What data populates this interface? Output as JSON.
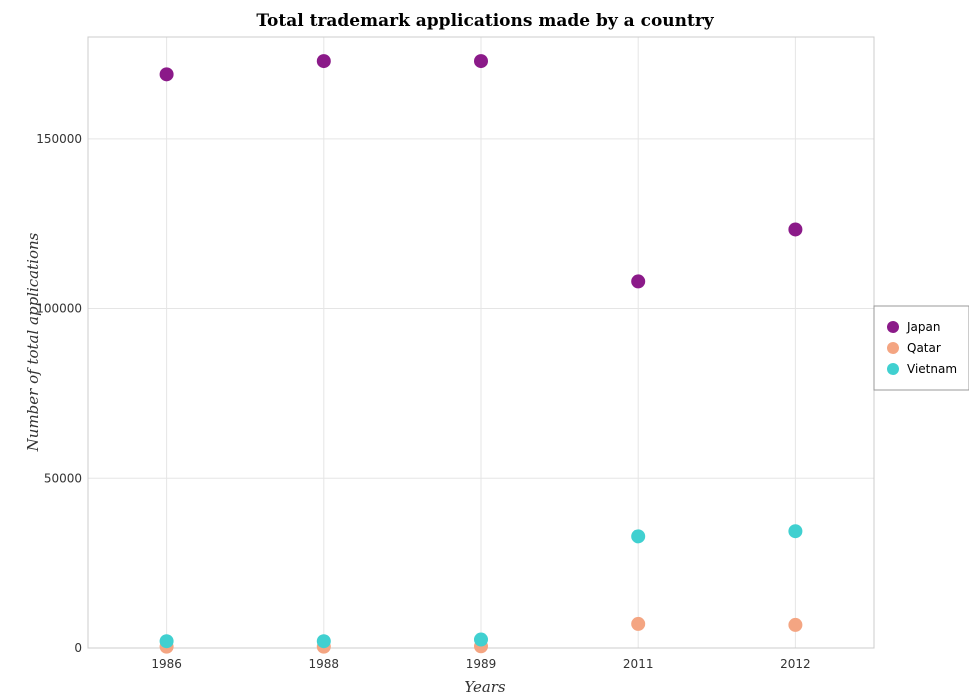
{
  "chart_data": {
    "type": "scatter",
    "title": "Total trademark applications made by a country",
    "xlabel": "Years",
    "ylabel": "Number of total applications",
    "categories": [
      "1986",
      "1988",
      "1989",
      "2011",
      "2012"
    ],
    "ylim": [
      0,
      180000
    ],
    "yticks": [
      0,
      50000,
      100000,
      150000
    ],
    "ytick_labels": [
      "0",
      "50000",
      "100000",
      "150000"
    ],
    "grid": true,
    "legend_position": "right",
    "series": [
      {
        "name": "Japan",
        "color": "#8b1a89",
        "values": [
          169000,
          172900,
          172900,
          108000,
          123300
        ]
      },
      {
        "name": "Qatar",
        "color": "#f4a582",
        "values": [
          400,
          400,
          500,
          7100,
          6800
        ]
      },
      {
        "name": "Vietnam",
        "color": "#40d0d0",
        "values": [
          2000,
          2000,
          2500,
          32900,
          34400
        ]
      }
    ]
  }
}
